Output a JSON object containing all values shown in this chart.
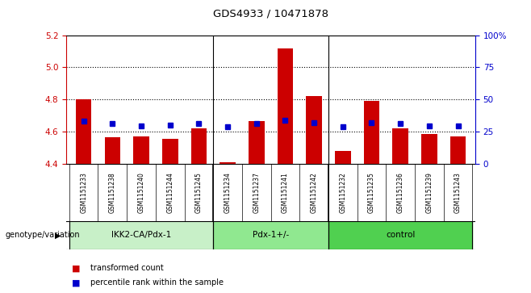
{
  "title": "GDS4933 / 10471878",
  "samples": [
    "GSM1151233",
    "GSM1151238",
    "GSM1151240",
    "GSM1151244",
    "GSM1151245",
    "GSM1151234",
    "GSM1151237",
    "GSM1151241",
    "GSM1151242",
    "GSM1151232",
    "GSM1151235",
    "GSM1151236",
    "GSM1151239",
    "GSM1151243"
  ],
  "red_values": [
    4.8,
    4.565,
    4.57,
    4.555,
    4.62,
    4.41,
    4.665,
    5.12,
    4.82,
    4.48,
    4.79,
    4.62,
    4.585,
    4.57
  ],
  "blue_values": [
    4.668,
    4.65,
    4.638,
    4.642,
    4.652,
    4.632,
    4.65,
    4.672,
    4.656,
    4.634,
    4.656,
    4.65,
    4.638,
    4.638
  ],
  "ymin": 4.4,
  "ymax": 5.2,
  "yticks_left": [
    4.4,
    4.6,
    4.8,
    5.0,
    5.2
  ],
  "yticks_right": [
    0,
    25,
    50,
    75,
    100
  ],
  "groups": [
    {
      "label": "IKK2-CA/Pdx-1",
      "start": 0,
      "end": 5,
      "color": "#c8f0c8"
    },
    {
      "label": "Pdx-1+/-",
      "start": 5,
      "end": 9,
      "color": "#90e890"
    },
    {
      "label": "control",
      "start": 9,
      "end": 14,
      "color": "#50d050"
    }
  ],
  "group_label_prefix": "genotype/variation",
  "legend_red": "transformed count",
  "legend_blue": "percentile rank within the sample",
  "bar_color": "#cc0000",
  "dot_color": "#0000cc",
  "bg_color": "#d0d0d0",
  "plot_bg": "#ffffff",
  "left_axis_color": "#cc0000",
  "right_axis_color": "#0000cc",
  "group_sep_indices": [
    5,
    9
  ]
}
